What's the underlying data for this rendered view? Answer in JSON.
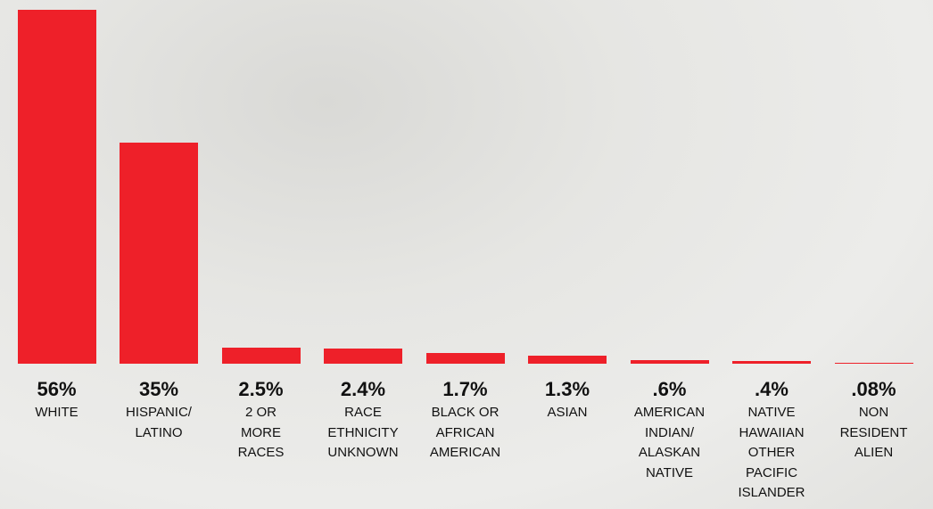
{
  "chart_data": {
    "type": "bar",
    "categories": [
      "WHITE",
      "HISPANIC/\nLATINO",
      "2 OR\nMORE\nRACES",
      "RACE\nETHNICITY\nUNKNOWN",
      "BLACK OR\nAFRICAN\nAMERICAN",
      "ASIAN",
      "AMERICAN\nINDIAN/\nALASKAN\nNATIVE",
      "NATIVE\nHAWAIIAN\nOTHER\nPACIFIC\nISLANDER",
      "NON\nRESIDENT\nALIEN"
    ],
    "values": [
      56,
      35,
      2.5,
      2.4,
      1.7,
      1.3,
      0.6,
      0.4,
      0.08
    ],
    "value_labels": [
      "56%",
      "35%",
      "2.5%",
      "2.4%",
      "1.7%",
      "1.3%",
      ".6%",
      ".4%",
      ".08%"
    ],
    "color": "#ee2029"
  }
}
